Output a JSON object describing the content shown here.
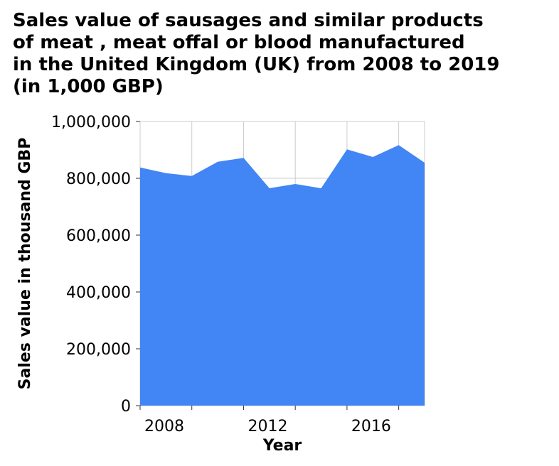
{
  "chart_data": {
    "type": "area",
    "title": "Sales value of sausages and similar products\nof meat , meat offal or blood manufactured\nin the United Kingdom (UK) from 2008 to 2019\n(in 1,000 GBP)",
    "xlabel": "Year",
    "ylabel": "Sales value in thousand GBP",
    "x": [
      2008,
      2009,
      2010,
      2011,
      2012,
      2013,
      2014,
      2015,
      2016,
      2017,
      2018,
      2019
    ],
    "values": [
      838000,
      818000,
      808000,
      858000,
      872000,
      765000,
      780000,
      765000,
      902000,
      875000,
      917000,
      855000
    ],
    "xlim": [
      2008,
      2019
    ],
    "ylim": [
      0,
      1000000
    ],
    "x_ticks": [
      2008,
      2012,
      2016
    ],
    "x_tick_labels": [
      "2008",
      "2012",
      "2016"
    ],
    "y_ticks": [
      0,
      200000,
      400000,
      600000,
      800000,
      1000000
    ],
    "y_tick_labels": [
      "0",
      "200,000",
      "400,000",
      "600,000",
      "800,000",
      "1,000,000"
    ],
    "grid": true,
    "fill_color": "#4285f4",
    "grid_color": "#cccccc"
  }
}
